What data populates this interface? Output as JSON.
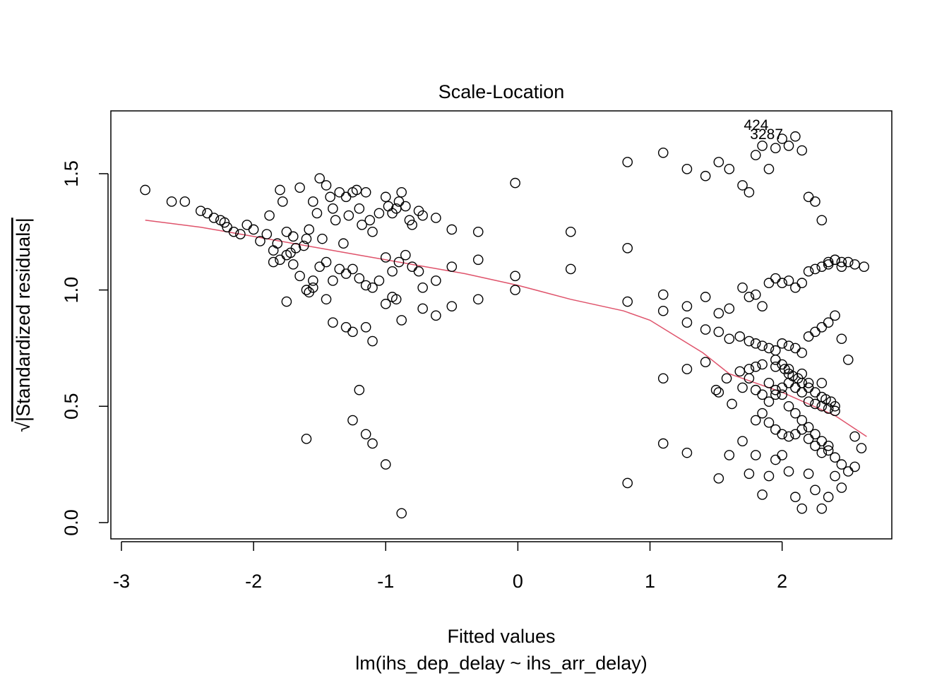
{
  "chart_data": {
    "type": "scatter",
    "title": "Scale-Location",
    "xlabel": "Fitted values",
    "xsublabel": "lm(ihs_dep_delay ~ ihs_arr_delay)",
    "ylabel_sqrt": "√",
    "ylabel": "|Standardized residuals|",
    "xlim": [
      -3.08,
      2.83
    ],
    "ylim": [
      -0.07,
      1.77
    ],
    "xticks": [
      -3,
      -2,
      -1,
      0,
      1,
      2
    ],
    "xtick_labels": [
      "-3",
      "-2",
      "-1",
      "0",
      "1",
      "2"
    ],
    "yticks": [
      0.0,
      0.5,
      1.0,
      1.5
    ],
    "ytick_labels": [
      "0.0",
      "0.5",
      "1.0",
      "1.5"
    ],
    "grid": false,
    "point_color": "#000000",
    "smooth_color": "#DF536B",
    "labeled_points": [
      {
        "label": "424",
        "x": 1.94,
        "y": 1.71
      },
      {
        "label": "3287",
        "x": 2.05,
        "y": 1.67
      }
    ],
    "smooth_line": {
      "x": [
        -2.82,
        -2.4,
        -2.0,
        -1.6,
        -1.2,
        -0.8,
        -0.4,
        0.0,
        0.4,
        0.8,
        1.0,
        1.2,
        1.4,
        1.6,
        1.8,
        2.0,
        2.2,
        2.4,
        2.64
      ],
      "y": [
        1.3,
        1.27,
        1.23,
        1.19,
        1.15,
        1.11,
        1.07,
        1.02,
        0.96,
        0.91,
        0.87,
        0.8,
        0.73,
        0.64,
        0.6,
        0.56,
        0.51,
        0.46,
        0.37
      ]
    },
    "points": {
      "x": [
        -2.82,
        -2.62,
        -2.52,
        -2.4,
        -2.35,
        -2.3,
        -2.25,
        -2.22,
        -2.2,
        -2.15,
        -2.1,
        -2.05,
        -2.0,
        -1.95,
        -1.9,
        -1.88,
        -1.85,
        -1.82,
        -1.8,
        -1.78,
        -1.75,
        -1.72,
        -1.7,
        -1.68,
        -1.65,
        -1.62,
        -1.6,
        -1.58,
        -1.55,
        -1.52,
        -1.5,
        -1.48,
        -1.45,
        -1.42,
        -1.4,
        -1.38,
        -1.35,
        -1.32,
        -1.3,
        -1.28,
        -1.25,
        -1.22,
        -1.2,
        -1.18,
        -1.15,
        -1.12,
        -1.1,
        -1.05,
        -1.0,
        -0.98,
        -0.95,
        -0.92,
        -0.9,
        -0.88,
        -0.85,
        -0.82,
        -0.8,
        -0.75,
        -0.72,
        -0.62,
        -0.5,
        -0.3,
        -0.02,
        0.4,
        0.83,
        1.1,
        1.28,
        1.42,
        1.52,
        1.6,
        1.7,
        1.75,
        1.8,
        1.85,
        1.9,
        1.95,
        2.0,
        2.05,
        2.1,
        2.15,
        2.2,
        2.25,
        2.3,
        2.35,
        2.4,
        2.45,
        2.5,
        2.55,
        2.62,
        -1.85,
        -1.8,
        -1.75,
        -1.7,
        -1.65,
        -1.6,
        -1.55,
        -1.5,
        -1.45,
        -1.4,
        -1.35,
        -1.3,
        -1.25,
        -1.2,
        -1.15,
        -1.1,
        -1.05,
        -1.0,
        -0.95,
        -0.9,
        -0.85,
        -0.8,
        -0.75,
        -0.72,
        -0.62,
        -0.5,
        -0.3,
        -0.02,
        0.4,
        0.83,
        1.1,
        1.28,
        1.42,
        1.52,
        1.6,
        1.7,
        1.75,
        1.8,
        1.85,
        1.9,
        1.95,
        2.0,
        2.05,
        2.1,
        2.15,
        2.2,
        2.25,
        2.3,
        2.35,
        2.4,
        2.45,
        -1.75,
        -1.58,
        -1.55,
        -1.45,
        -1.4,
        -1.3,
        -1.25,
        -1.15,
        -1.1,
        -1.0,
        -0.95,
        -0.92,
        -0.88,
        -0.72,
        -0.62,
        -0.5,
        -0.3,
        -0.02,
        0.83,
        1.1,
        1.28,
        1.42,
        1.52,
        1.6,
        1.68,
        1.75,
        1.8,
        1.85,
        1.9,
        1.95,
        2.0,
        2.05,
        2.1,
        2.15,
        2.2,
        2.25,
        2.3,
        2.35,
        2.4,
        2.45,
        2.5,
        -1.6,
        -1.25,
        -1.2,
        -1.15,
        -1.1,
        -1.0,
        -0.88,
        0.83,
        1.1,
        1.28,
        1.52,
        1.6,
        1.7,
        1.75,
        1.8,
        1.85,
        1.9,
        1.95,
        2.0,
        2.05,
        2.1,
        2.15,
        2.2,
        2.25,
        2.3,
        2.35,
        2.4,
        2.45,
        2.55,
        1.5,
        1.7,
        1.75,
        1.8,
        1.85,
        1.9,
        1.95,
        2.0,
        2.05,
        2.1,
        2.15,
        2.2,
        2.25,
        2.3,
        2.35,
        2.4,
        1.8,
        1.85,
        1.9,
        1.95,
        2.0,
        2.05,
        2.1,
        2.15,
        2.2,
        2.25,
        2.3,
        2.35,
        1.1,
        1.28,
        1.42,
        1.52,
        1.58,
        1.62,
        1.68,
        1.75,
        1.8,
        1.85,
        1.95,
        2.05,
        2.15,
        2.2,
        2.3,
        1.95,
        2.0,
        2.02,
        2.05,
        2.08,
        2.12,
        2.15,
        2.2,
        2.25,
        2.3,
        2.33,
        2.37,
        2.4,
        1.9,
        1.95,
        2.0,
        2.05,
        2.1,
        2.15,
        2.2,
        2.25,
        2.3,
        2.35,
        2.4,
        2.45,
        2.5,
        2.55,
        2.6
      ],
      "y": [
        1.43,
        1.38,
        1.38,
        1.34,
        1.33,
        1.31,
        1.3,
        1.29,
        1.27,
        1.25,
        1.24,
        1.28,
        1.26,
        1.21,
        1.24,
        1.32,
        1.17,
        1.2,
        1.43,
        1.38,
        1.25,
        1.16,
        1.23,
        1.18,
        1.44,
        1.19,
        1.22,
        1.26,
        1.38,
        1.33,
        1.48,
        1.22,
        1.45,
        1.4,
        1.35,
        1.3,
        1.42,
        1.2,
        1.4,
        1.32,
        1.42,
        1.43,
        1.35,
        1.28,
        1.42,
        1.3,
        1.25,
        1.33,
        1.4,
        1.36,
        1.33,
        1.35,
        1.38,
        1.42,
        1.36,
        1.3,
        1.28,
        1.34,
        1.32,
        1.31,
        1.26,
        1.25,
        1.46,
        1.25,
        1.55,
        1.59,
        1.52,
        1.49,
        1.55,
        1.52,
        1.45,
        1.42,
        1.58,
        1.62,
        1.52,
        1.61,
        1.65,
        1.62,
        1.66,
        1.6,
        1.4,
        1.38,
        1.3,
        1.12,
        1.13,
        1.1,
        1.12,
        1.11,
        1.1,
        1.12,
        1.13,
        1.15,
        1.11,
        1.06,
        1.0,
        1.04,
        1.1,
        1.12,
        1.04,
        1.09,
        1.07,
        1.09,
        1.05,
        1.02,
        1.01,
        1.04,
        1.14,
        1.08,
        1.12,
        1.15,
        1.1,
        1.08,
        1.01,
        1.04,
        1.1,
        1.13,
        1.06,
        1.09,
        1.18,
        0.98,
        0.93,
        0.97,
        0.9,
        0.92,
        1.01,
        0.97,
        0.98,
        0.93,
        1.03,
        1.05,
        1.03,
        1.04,
        1.01,
        1.03,
        1.08,
        1.09,
        1.1,
        1.11,
        1.13,
        1.12,
        0.95,
        0.99,
        1.01,
        0.96,
        0.86,
        0.84,
        0.82,
        0.84,
        0.78,
        0.94,
        0.97,
        0.96,
        0.87,
        0.92,
        0.89,
        0.93,
        0.96,
        1.0,
        0.95,
        0.91,
        0.86,
        0.83,
        0.82,
        0.79,
        0.8,
        0.78,
        0.77,
        0.76,
        0.75,
        0.74,
        0.77,
        0.76,
        0.75,
        0.73,
        0.8,
        0.82,
        0.84,
        0.86,
        0.89,
        0.79,
        0.7,
        0.36,
        0.44,
        0.57,
        0.38,
        0.34,
        0.25,
        0.04,
        0.17,
        0.34,
        0.3,
        0.19,
        0.29,
        0.35,
        0.21,
        0.29,
        0.12,
        0.2,
        0.27,
        0.29,
        0.22,
        0.11,
        0.06,
        0.21,
        0.14,
        0.06,
        0.11,
        0.2,
        0.15,
        0.24,
        0.57,
        0.58,
        0.62,
        0.57,
        0.55,
        0.52,
        0.55,
        0.58,
        0.6,
        0.58,
        0.56,
        0.52,
        0.51,
        0.5,
        0.49,
        0.48,
        0.44,
        0.47,
        0.43,
        0.4,
        0.38,
        0.37,
        0.38,
        0.4,
        0.36,
        0.33,
        0.3,
        0.33,
        0.62,
        0.66,
        0.69,
        0.56,
        0.62,
        0.51,
        0.65,
        0.66,
        0.67,
        0.68,
        0.67,
        0.66,
        0.64,
        0.6,
        0.6,
        0.7,
        0.68,
        0.66,
        0.64,
        0.63,
        0.62,
        0.6,
        0.58,
        0.56,
        0.54,
        0.53,
        0.52,
        0.5,
        0.6,
        0.57,
        0.55,
        0.5,
        0.47,
        0.44,
        0.41,
        0.38,
        0.35,
        0.31,
        0.28,
        0.25,
        0.22,
        0.37,
        0.32
      ]
    }
  }
}
